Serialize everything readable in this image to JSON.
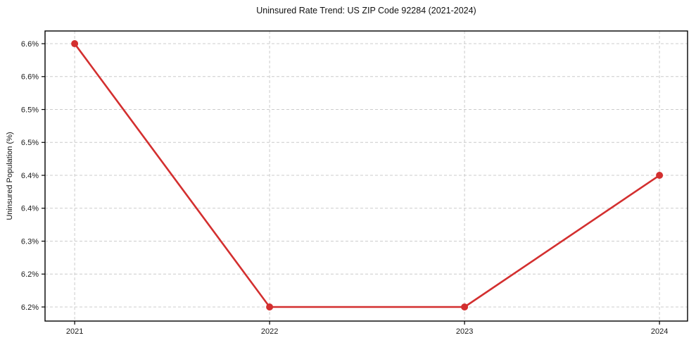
{
  "chart_data": {
    "type": "line",
    "title": "Uninsured Rate Trend: US ZIP Code 92284 (2021-2024)",
    "xlabel": "",
    "ylabel": "Uninsured Population (%)",
    "x": [
      2021,
      2022,
      2023,
      2024
    ],
    "xtick_labels": [
      "2021",
      "2022",
      "2023",
      "2024"
    ],
    "series": [
      {
        "values": [
          6.6,
          6.2,
          6.2,
          6.4
        ],
        "color": "#d32f2f",
        "marker": "circle"
      }
    ],
    "yticks": [
      6.2,
      6.25,
      6.3,
      6.35,
      6.4,
      6.45,
      6.5,
      6.55,
      6.6
    ],
    "ytick_labels": [
      "6.2%",
      "6.2%",
      "6.3%",
      "6.4%",
      "6.4%",
      "6.5%",
      "6.5%",
      "6.6%",
      "6.6%"
    ],
    "ylim": [
      6.1786,
      6.6193
    ],
    "xlim": [
      2020.848,
      2024.144
    ],
    "grid": true,
    "grid_color": "#cccccc",
    "grid_style": "dashed",
    "axis_color": "#000000",
    "text_color": "#1a1a1a",
    "background": "#ffffff",
    "legend": "none"
  }
}
